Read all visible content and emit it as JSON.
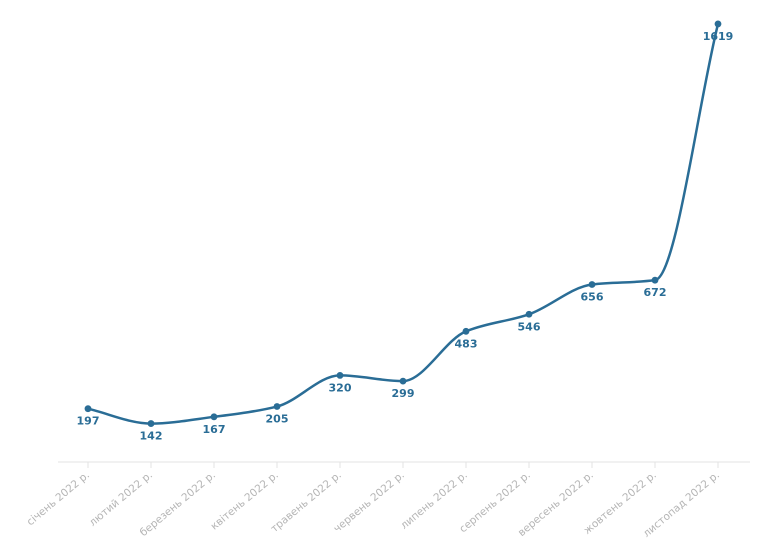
{
  "chart_data": {
    "type": "line",
    "title": "",
    "xlabel": "",
    "ylabel": "",
    "categories": [
      "січень 2022 р.",
      "лютий 2022 р.",
      "березень 2022 р.",
      "квітень 2022 р.",
      "травень 2022 р.",
      "червень 2022 р.",
      "липень 2022 р.",
      "серпень 2022 р.",
      "вересень 2022 р.",
      "жовтень 2022 р.",
      "листопад 2022 р."
    ],
    "series": [
      {
        "values": [
          197,
          142,
          167,
          205,
          320,
          299,
          483,
          546,
          656,
          672,
          1619
        ]
      }
    ],
    "ylim": [
      0,
      1700
    ],
    "smooth": true,
    "data_labels": true,
    "grid": false,
    "colors": {
      "line": "#2a6d96",
      "label": "#2a6d96",
      "axis": "#e3e3e3",
      "tick": "#b5b5b5"
    }
  }
}
